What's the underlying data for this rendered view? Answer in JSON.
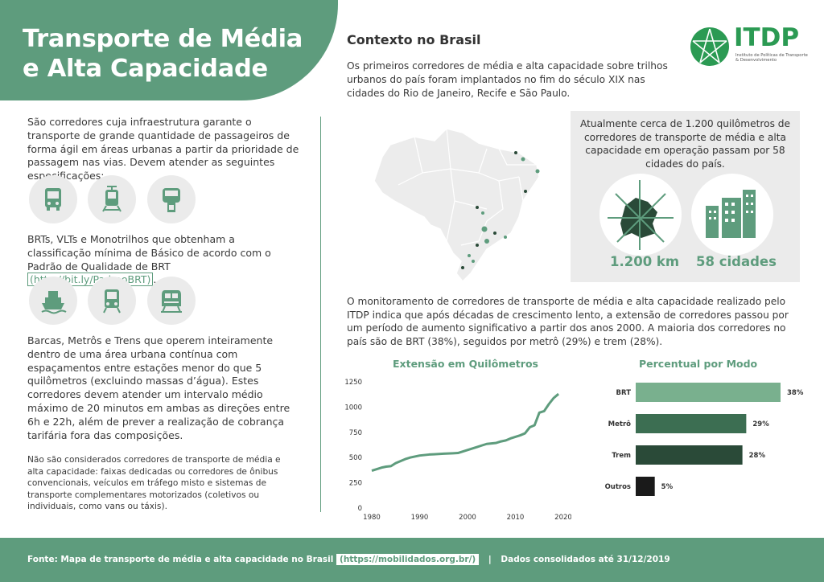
{
  "header": {
    "title_line1": "Transporte de Média",
    "title_line2": "e Alta Capacidade"
  },
  "context": {
    "heading": "Contexto no Brasil",
    "text": "Os primeiros corredores de média e alta capacidade sobre trilhos urbanos do país foram implantados no fim do século XIX nas cidades do Rio de Janeiro, Recife e São Paulo."
  },
  "logo": {
    "name": "ITDP",
    "subtitle_line1": "Instituto de Políticas de Transporte",
    "subtitle_line2": "& Desenvolvimento"
  },
  "left": {
    "intro": "São corredores cuja infraestrutura garante o transporte de grande quantidade de passageiros de forma ágil em áreas urbanas a partir da prioridade de passagem nas vias. Devem atender as seguintes especificações:",
    "qualification": "BRTs, VLTs e Monotrilhos que obtenham a classificação mínima de Básico de acordo com o Padrão de Qualidade de BRT",
    "qualification_link": "(http://bit.ly/PadraoBRT)",
    "qualification_end": ".",
    "rail": "Barcas, Metrôs e Trens que operem inteiramente dentro de uma área urbana contínua com espaçamentos entre estações menor do que 5 quilômetros (excluindo massas d’água). Estes corredores devem atender um intervalo médio máximo de 20 minutos em ambas as direções entre 6h e 22h, além de prever a realização de cobrança tarifária fora das composições.",
    "other": "Não são considerados corredores de transporte de média e alta capacidade: faixas dedicadas ou corredores de ônibus convencionais, veículos em tráfego misto e sistemas de transporte complementares motorizados (coletivos ou individuais, como vans ou táxis).",
    "icons_row1": [
      "bus-icon",
      "tram-icon",
      "monorail-icon"
    ],
    "icons_row2": [
      "ferry-icon",
      "metro-icon",
      "train-icon"
    ]
  },
  "stats": {
    "text": "Atualmente cerca de 1.200 quilômetros de corredores de transporte de média e alta capacidade em operação passam por 58 cidades do país.",
    "km_label": "1.200 km",
    "cities_label": "58 cidades"
  },
  "monitor": {
    "text": "O monitoramento de corredores de transporte de média e alta capacidade realizado pelo ITDP indica que após décadas de crescimento lento, a extensão de corredores passou por um período de aumento significativo a partir dos anos 2000.  A maioria dos corredores no país são de BRT (38%), seguidos por metrô (29%) e trem (28%)."
  },
  "chart_data": [
    {
      "type": "line",
      "title": "Extensão em Quilômetros",
      "x": [
        1980,
        1981,
        1982,
        1983,
        1984,
        1985,
        1986,
        1987,
        1988,
        1989,
        1990,
        1991,
        1992,
        1993,
        1994,
        1995,
        1996,
        1997,
        1998,
        1999,
        2000,
        2001,
        2002,
        2003,
        2004,
        2005,
        2006,
        2007,
        2008,
        2009,
        2010,
        2011,
        2012,
        2013,
        2014,
        2015,
        2016,
        2017,
        2018,
        2019
      ],
      "series": [
        {
          "values": [
            370,
            385,
            400,
            410,
            415,
            445,
            465,
            485,
            500,
            510,
            520,
            525,
            530,
            532,
            535,
            538,
            540,
            542,
            545,
            560,
            575,
            590,
            605,
            620,
            635,
            640,
            645,
            660,
            670,
            690,
            705,
            720,
            740,
            800,
            820,
            945,
            960,
            1030,
            1090,
            1130
          ]
        }
      ],
      "ylim": [
        0,
        1250
      ],
      "yticks": [
        "0",
        "250",
        "500",
        "750",
        "1000",
        "1250"
      ],
      "xticks": [
        "1980",
        "1990",
        "2000",
        "2010",
        "2020"
      ],
      "color": "#5e9c7d"
    },
    {
      "type": "bar",
      "title": "Percentual por Modo",
      "orientation": "horizontal",
      "categories": [
        "BRT",
        "Metrô",
        "Trem",
        "Outros"
      ],
      "values": [
        38,
        29,
        28,
        5
      ],
      "value_labels": [
        "38%",
        "29%",
        "28%",
        "5%"
      ],
      "colors": [
        "#79b08e",
        "#3c6e52",
        "#2a4a38",
        "#1a1a1a"
      ]
    }
  ],
  "footer": {
    "source": "Fonte: Mapa de transporte de média e alta capacidade no Brasil",
    "link": "(https://mobilidados.org.br/)",
    "separator": "|",
    "date_note": "Dados consolidados até 31/12/2019"
  },
  "colors": {
    "accent": "#5e9c7d",
    "logo_green": "#2b9a53",
    "panel_gray": "#ebebeb"
  }
}
